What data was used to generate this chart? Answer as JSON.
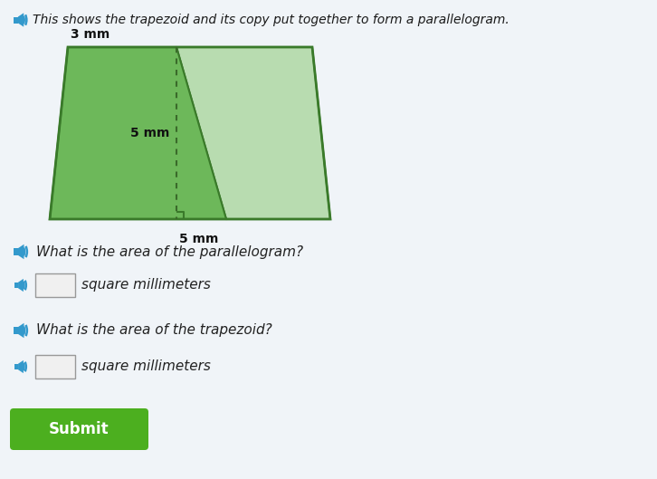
{
  "bg_color": "#dce8f0",
  "title_text": "This shows the trapezoid and its copy put together to form a parallelogram.",
  "title_fontsize": 10.5,
  "title_color": "#1a1a1a",
  "para_fill_dark": "#6db85a",
  "para_fill_light": "#b8dcb0",
  "para_outline": "#3a7a2a",
  "dashed_color": "#3a6a2a",
  "label_3mm": "3 mm",
  "label_5mm": "5 mm",
  "label_6mm": "5 mm",
  "q1_text": "What is the area of the parallelogram?",
  "q2_text": "What is the area of the trapezoid?",
  "unit_text": "square millimeters",
  "submit_text": "Submit",
  "submit_bg": "#4caf1f",
  "submit_fg": "#ffffff",
  "speaker_color": "#3399cc",
  "input_box_color": "#f0f0f0",
  "input_box_border": "#999999"
}
